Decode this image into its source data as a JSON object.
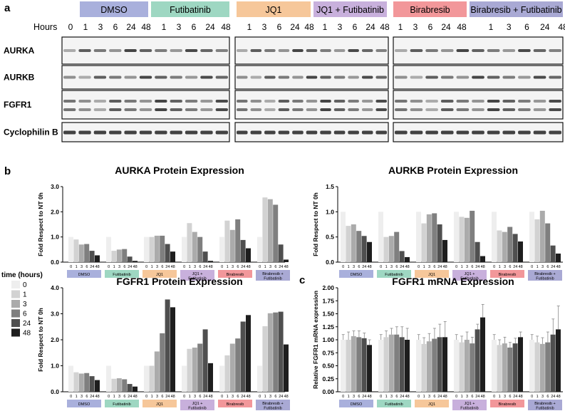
{
  "panel_labels": {
    "a": "a",
    "b": "b",
    "c": "c"
  },
  "blot": {
    "hours_label": "Hours",
    "groups": [
      {
        "name": "DMSO",
        "color": "#a9b0dc",
        "hours": [
          "0",
          "1",
          "3",
          "6",
          "24",
          "48"
        ]
      },
      {
        "name": "Futibatinib",
        "color": "#9ed7c2",
        "hours": [
          "1",
          "3",
          "6",
          "24",
          "48"
        ]
      },
      {
        "name": "JQ1",
        "color": "#f6c79a",
        "hours": [
          "1",
          "3",
          "6",
          "24",
          "48"
        ]
      },
      {
        "name": "JQ1 + Futibatinib",
        "color": "#c8b0dc",
        "hours": [
          "1",
          "3",
          "6",
          "24",
          "48"
        ]
      },
      {
        "name": "Birabresib",
        "color": "#f2979a",
        "hours": [
          "1",
          "3",
          "6",
          "24",
          "48"
        ]
      },
      {
        "name": "Birabresib + Futibatinib",
        "color": "#a9a9d4",
        "hours": [
          "1",
          "3",
          "6",
          "24",
          "48"
        ]
      }
    ],
    "proteins": [
      "AURKA",
      "AURKB",
      "FGFR1",
      "Cyclophilin B"
    ]
  },
  "legend": {
    "title": "time (hours)",
    "items": [
      "0",
      "1",
      "3",
      "6",
      "24",
      "48"
    ],
    "colors": [
      "#eeeeee",
      "#d2d2d2",
      "#ababab",
      "#7f7f7f",
      "#4f4f4f",
      "#1e1e1e"
    ]
  },
  "chart_data": [
    {
      "type": "bar",
      "title": "AURKA Protein Expression",
      "ylabel": "Fold Respect to NT 0h",
      "ylim": [
        0,
        3.0
      ],
      "yticks": [
        "0.0",
        "1.0",
        "2.0",
        "3.0"
      ],
      "tick_values": [
        0,
        1,
        2,
        3
      ],
      "hour_ticks": [
        "0",
        "1",
        "3",
        "6",
        "24",
        "48"
      ],
      "groups": [
        {
          "name": "DMSO",
          "values": [
            1.0,
            0.9,
            0.7,
            0.72,
            0.45,
            0.27
          ]
        },
        {
          "name": "Futibatinib",
          "values": [
            1.0,
            0.45,
            0.5,
            0.52,
            0.22,
            0.05
          ]
        },
        {
          "name": "JQ1",
          "values": [
            1.0,
            1.0,
            1.05,
            1.05,
            0.72,
            0.42
          ]
        },
        {
          "name": "JQ1 + Futibatinib",
          "values": [
            1.0,
            1.55,
            1.2,
            1.0,
            0.42,
            0.05
          ]
        },
        {
          "name": "Birabresib",
          "values": [
            1.0,
            1.65,
            1.28,
            1.7,
            0.88,
            0.55
          ]
        },
        {
          "name": "Birabresib + Futibatinib",
          "values": [
            1.0,
            2.57,
            2.5,
            2.28,
            0.7,
            0.1
          ]
        }
      ]
    },
    {
      "type": "bar",
      "title": "AURKB Protein Expression",
      "ylabel": "Fold Respect to NT 0h",
      "ylim": [
        0,
        1.5
      ],
      "yticks": [
        "0.0",
        "0.5",
        "1.0",
        "1.5"
      ],
      "tick_values": [
        0,
        0.5,
        1,
        1.5
      ],
      "hour_ticks": [
        "0",
        "1",
        "3",
        "6",
        "24",
        "48"
      ],
      "groups": [
        {
          "name": "DMSO",
          "values": [
            1.0,
            0.72,
            0.75,
            0.62,
            0.52,
            0.4
          ]
        },
        {
          "name": "Futibatinib",
          "values": [
            1.0,
            0.5,
            0.52,
            0.6,
            0.22,
            0.1
          ]
        },
        {
          "name": "JQ1",
          "values": [
            1.0,
            0.77,
            0.95,
            0.97,
            0.75,
            0.44
          ]
        },
        {
          "name": "JQ1 + Futibatinib",
          "values": [
            1.0,
            0.9,
            0.88,
            1.02,
            0.4,
            0.12
          ]
        },
        {
          "name": "Birabresib",
          "values": [
            1.0,
            0.63,
            0.6,
            0.7,
            0.56,
            0.41
          ]
        },
        {
          "name": "Birabresib + Futibatinib",
          "values": [
            1.0,
            0.85,
            1.02,
            0.77,
            0.33,
            0.17
          ]
        }
      ]
    },
    {
      "type": "bar",
      "title": "FGFR1 Protein Expression",
      "ylabel": "Fold Respect to NT 0h",
      "ylim": [
        0,
        4.0
      ],
      "yticks": [
        "0.0",
        "1.0",
        "2.0",
        "3.0",
        "4.0"
      ],
      "tick_values": [
        0,
        1,
        2,
        3,
        4
      ],
      "hour_ticks": [
        "0",
        "1",
        "3",
        "6",
        "24",
        "48"
      ],
      "groups": [
        {
          "name": "DMSO",
          "values": [
            1.0,
            0.75,
            0.7,
            0.72,
            0.6,
            0.45
          ]
        },
        {
          "name": "Futibatinib",
          "values": [
            1.0,
            0.5,
            0.52,
            0.48,
            0.3,
            0.2
          ]
        },
        {
          "name": "JQ1",
          "values": [
            1.0,
            1.0,
            1.55,
            2.25,
            3.55,
            3.25
          ]
        },
        {
          "name": "JQ1 + Futibatinib",
          "values": [
            1.0,
            1.65,
            1.7,
            1.85,
            2.4,
            1.1
          ]
        },
        {
          "name": "Birabresib",
          "values": [
            1.0,
            1.4,
            1.85,
            2.05,
            2.7,
            2.95
          ]
        },
        {
          "name": "Birabresib + Futibatinib",
          "values": [
            1.0,
            2.52,
            3.02,
            3.05,
            3.08,
            1.82
          ]
        }
      ]
    },
    {
      "type": "bar",
      "title": "FGFR1 mRNA Expression",
      "ylabel": "Relative FGFR1 mRNA expression",
      "ylim": [
        0,
        2.0
      ],
      "yticks": [
        "0.00",
        "0.25",
        "0.50",
        "0.75",
        "1.00",
        "1.25",
        "1.50",
        "1.75",
        "2.00"
      ],
      "tick_values": [
        0,
        0.25,
        0.5,
        0.75,
        1.0,
        1.25,
        1.5,
        1.75,
        2.0
      ],
      "hour_ticks": [
        "0",
        "1",
        "3",
        "6",
        "24",
        "48"
      ],
      "error_bars": true,
      "groups": [
        {
          "name": "DMSO",
          "values": [
            1.0,
            1.0,
            1.07,
            1.05,
            1.03,
            0.9
          ],
          "errors": [
            0.1,
            0.15,
            0.1,
            0.12,
            0.1,
            0.1
          ]
        },
        {
          "name": "Futibatinib",
          "values": [
            1.0,
            1.05,
            1.1,
            1.1,
            1.05,
            1.0
          ],
          "errors": [
            0.1,
            0.12,
            0.12,
            0.15,
            0.2,
            0.22
          ]
        },
        {
          "name": "JQ1",
          "values": [
            1.0,
            0.92,
            0.97,
            1.02,
            1.05,
            1.05
          ],
          "errors": [
            0.1,
            0.12,
            0.15,
            0.2,
            0.25,
            0.3
          ]
        },
        {
          "name": "JQ1 + Futibatinib",
          "values": [
            1.0,
            0.95,
            1.0,
            0.93,
            1.2,
            1.43
          ],
          "errors": [
            0.1,
            0.12,
            0.15,
            0.12,
            0.1,
            0.25
          ]
        },
        {
          "name": "Birabresib",
          "values": [
            1.0,
            0.9,
            0.93,
            0.85,
            0.93,
            1.05
          ],
          "errors": [
            0.1,
            0.1,
            0.12,
            0.1,
            0.1,
            0.1
          ]
        },
        {
          "name": "Birabresib + Futibatinib",
          "values": [
            1.0,
            0.95,
            0.92,
            0.95,
            1.1,
            1.2
          ],
          "errors": [
            0.1,
            0.12,
            0.12,
            0.2,
            0.3,
            0.45
          ]
        }
      ]
    }
  ]
}
